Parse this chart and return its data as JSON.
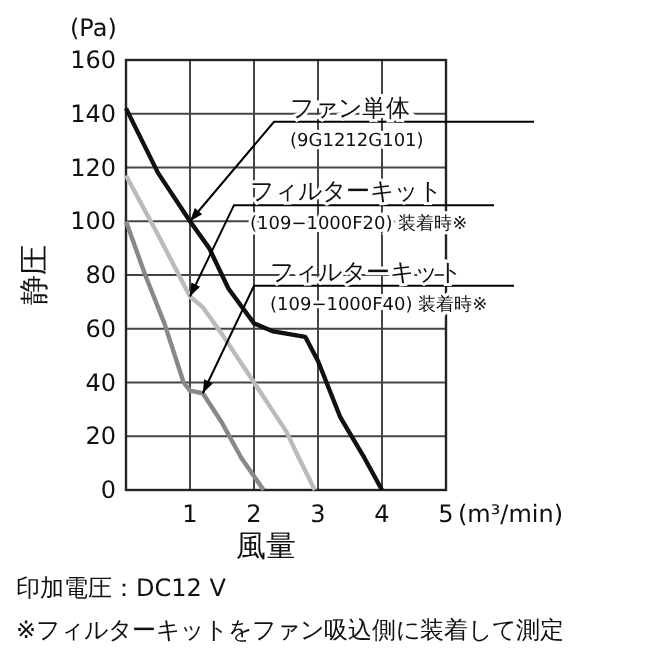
{
  "chart_data": {
    "type": "line",
    "xlabel": "風量",
    "ylabel": "静圧",
    "xlim": [
      0,
      5
    ],
    "ylim": [
      0,
      160
    ],
    "xticks": [
      1,
      2,
      3,
      4,
      5
    ],
    "yticks": [
      0,
      20,
      40,
      60,
      80,
      100,
      120,
      140,
      160
    ],
    "grid": true,
    "line_style": "solid",
    "marker": "none",
    "series": [
      {
        "name": "ファン単体\n(9G1212G101)",
        "color": "#111111",
        "x": [
          0,
          0.5,
          1,
          1.3,
          1.6,
          2,
          2.3,
          2.8,
          3,
          3.35,
          3.7,
          4
        ],
        "values": [
          142,
          118,
          100,
          90,
          75,
          62,
          59,
          57,
          48,
          27,
          13,
          0
        ]
      },
      {
        "name": "フィルターキット\n(109−1000F20) 装着時※",
        "color": "#bbbbbb",
        "x": [
          0,
          0.5,
          1,
          1.2,
          1.5,
          2,
          2.5,
          2.7,
          2.95
        ],
        "values": [
          117,
          95,
          72,
          68,
          58,
          40,
          22,
          12,
          0
        ]
      },
      {
        "name": "フィルターキット\n(109−1000F40) 装着時※",
        "color": "#888888",
        "x": [
          0,
          0.3,
          0.6,
          0.9,
          1,
          1.2,
          1.5,
          1.8,
          2.15
        ],
        "values": [
          100,
          80,
          62,
          40,
          37,
          36,
          25,
          12,
          0
        ]
      }
    ],
    "annotations": [
      "(Pa)",
      "(m³/min)",
      "印加電圧：DC12 V",
      "※フィルターキットをファン吸込側に装着して測定"
    ]
  }
}
